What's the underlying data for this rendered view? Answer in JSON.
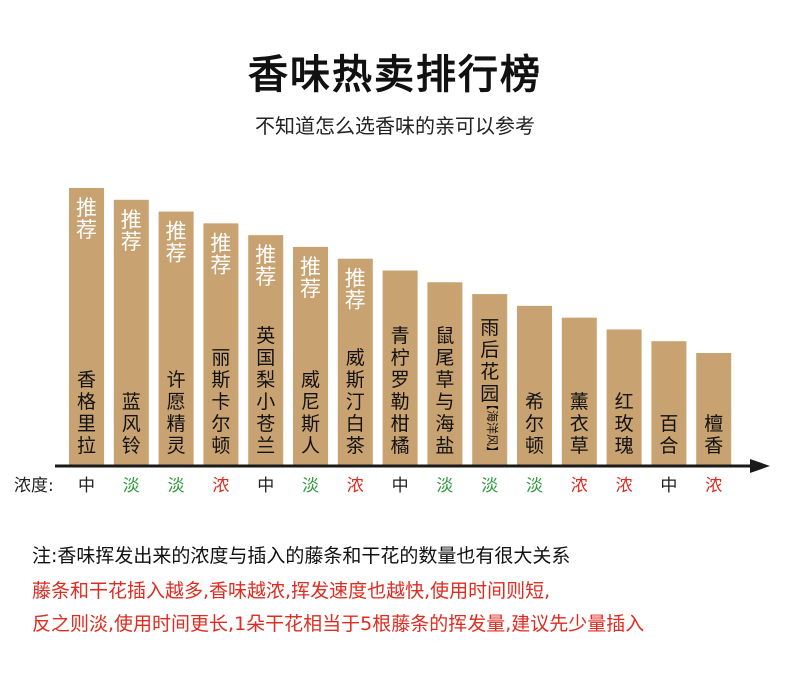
{
  "title": "香味热卖排行榜",
  "subtitle": "不知道怎么选香味的亲可以参考",
  "chart_data": {
    "type": "bar",
    "recommend_tag": "推荐",
    "categories": [
      "香格里拉",
      "蓝风铃",
      "许愿精灵",
      "丽斯卡尔顿",
      "英国梨小苍兰",
      "威尼斯人",
      "威斯汀白茶",
      "青柠罗勒柑橘",
      "鼠尾草与海盐",
      "雨后花园",
      "希尔顿",
      "薰衣草",
      "红玫瑰",
      "百合",
      "檀香"
    ],
    "category_notes": [
      "",
      "",
      "",
      "",
      "",
      "",
      "",
      "",
      "",
      "【海洋风】",
      "",
      "",
      "",
      "",
      ""
    ],
    "ranks": [
      15,
      14,
      13,
      12,
      11,
      10,
      9,
      8,
      7,
      6,
      5,
      4,
      3,
      2,
      1
    ],
    "recommended": [
      true,
      true,
      true,
      true,
      true,
      true,
      true,
      false,
      false,
      false,
      false,
      false,
      false,
      false,
      false
    ],
    "axis_label": "浓度:",
    "concentration": [
      "中",
      "淡",
      "淡",
      "浓",
      "中",
      "淡",
      "浓",
      "中",
      "淡",
      "淡",
      "淡",
      "浓",
      "浓",
      "中",
      "浓"
    ],
    "concentration_colors": {
      "中": "#222222",
      "淡": "#2e9b3c",
      "浓": "#e02b20"
    },
    "bar_color": "#c8a270"
  },
  "notes": {
    "line1": "注:香味挥发出来的浓度与插入的藤条和干花的数量也有很大关系",
    "line2": "藤条和干花插入越多,香味越浓,挥发速度也越快,使用时间则短,",
    "line3": "反之则淡,使用时间更长,1朵干花相当于5根藤条的挥发量,建议先少量插入"
  }
}
